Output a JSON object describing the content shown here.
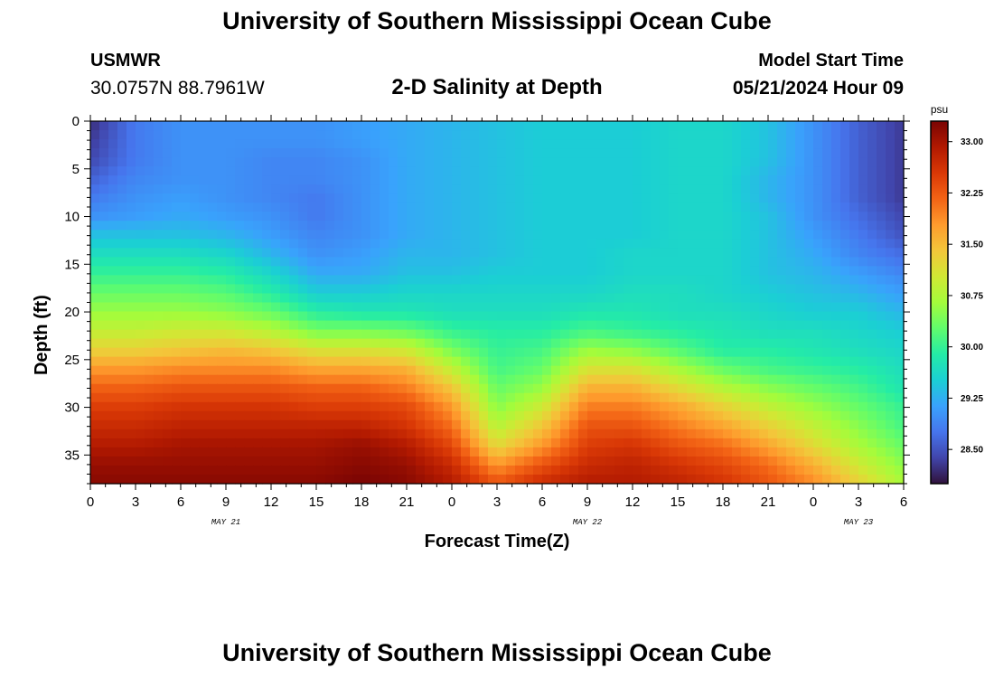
{
  "header": {
    "title": "University of Southern Mississippi Ocean Cube",
    "station": "USMWR",
    "coords": "30.0757N  88.7961W",
    "subtitle": "2-D Salinity at Depth",
    "model_start_label": "Model Start Time",
    "model_start_value": "05/21/2024 Hour 09"
  },
  "footer": {
    "title": "University of Southern Mississippi Ocean Cube"
  },
  "chart_data": {
    "type": "heatmap",
    "title": "2-D Salinity at Depth",
    "xlabel": "Forecast Time(Z)",
    "ylabel": "Depth (ft)",
    "x_tick_labels": [
      "0",
      "3",
      "6",
      "9",
      "12",
      "15",
      "18",
      "21",
      "0",
      "3",
      "6",
      "9",
      "12",
      "15",
      "18",
      "21",
      "0",
      "3",
      "6"
    ],
    "date_labels": [
      "MAY 21",
      "MAY 22",
      "MAY 23"
    ],
    "xlim_hours": [
      0,
      54
    ],
    "ylim": [
      0,
      38
    ],
    "y_ticks": [
      0,
      5,
      10,
      15,
      20,
      25,
      30,
      35
    ],
    "colorbar": {
      "unit": "psu",
      "range": [
        28.0,
        33.3
      ],
      "ticks": [
        "33.00",
        "32.25",
        "31.50",
        "30.75",
        "30.00",
        "29.25",
        "28.50"
      ],
      "colormap": [
        "#30123b",
        "#4145ab",
        "#4675ed",
        "#39a2fc",
        "#1bcfd4",
        "#24eca6",
        "#61fc6c",
        "#a4fc3b",
        "#d1e834",
        "#f3c63a",
        "#fe9b2d",
        "#f36315",
        "#d93806",
        "#b11901",
        "#7a0403"
      ]
    },
    "hours": [
      0,
      3,
      6,
      9,
      12,
      15,
      18,
      21,
      24,
      27,
      30,
      33,
      36,
      39,
      42,
      45,
      48,
      51,
      54
    ],
    "depths": [
      0,
      2,
      4,
      6,
      8,
      10,
      12,
      14,
      16,
      18,
      20,
      22,
      24,
      26,
      28,
      30,
      32,
      34,
      36,
      38
    ],
    "values": [
      [
        28.2,
        28.8,
        29.0,
        29.0,
        29.0,
        29.0,
        29.1,
        29.2,
        29.3,
        29.4,
        29.5,
        29.5,
        29.5,
        29.6,
        29.6,
        29.4,
        29.0,
        28.6,
        28.3
      ],
      [
        28.3,
        28.8,
        29.0,
        29.0,
        29.0,
        29.0,
        29.1,
        29.2,
        29.3,
        29.4,
        29.5,
        29.5,
        29.5,
        29.6,
        29.6,
        29.4,
        29.0,
        28.6,
        28.3
      ],
      [
        28.4,
        28.8,
        29.0,
        29.0,
        28.9,
        28.9,
        29.0,
        29.2,
        29.3,
        29.4,
        29.5,
        29.5,
        29.5,
        29.6,
        29.6,
        29.4,
        29.0,
        28.6,
        28.3
      ],
      [
        28.6,
        28.9,
        29.0,
        29.0,
        28.9,
        28.9,
        29.0,
        29.2,
        29.3,
        29.4,
        29.5,
        29.5,
        29.5,
        29.6,
        29.6,
        29.3,
        29.0,
        28.6,
        28.3
      ],
      [
        28.8,
        29.0,
        29.1,
        29.0,
        28.9,
        28.8,
        29.0,
        29.2,
        29.3,
        29.4,
        29.5,
        29.5,
        29.5,
        29.6,
        29.6,
        29.3,
        29.0,
        28.6,
        28.3
      ],
      [
        29.0,
        29.1,
        29.2,
        29.1,
        29.0,
        28.8,
        29.0,
        29.2,
        29.3,
        29.4,
        29.5,
        29.5,
        29.5,
        29.6,
        29.6,
        29.4,
        29.0,
        28.7,
        28.4
      ],
      [
        29.4,
        29.4,
        29.4,
        29.3,
        29.1,
        28.9,
        29.0,
        29.2,
        29.3,
        29.4,
        29.5,
        29.5,
        29.5,
        29.6,
        29.6,
        29.4,
        29.1,
        28.8,
        28.5
      ],
      [
        29.7,
        29.7,
        29.7,
        29.6,
        29.3,
        29.0,
        29.1,
        29.3,
        29.3,
        29.4,
        29.5,
        29.5,
        29.6,
        29.6,
        29.6,
        29.4,
        29.2,
        28.9,
        28.7
      ],
      [
        30.0,
        30.0,
        30.0,
        29.9,
        29.6,
        29.2,
        29.2,
        29.4,
        29.4,
        29.5,
        29.5,
        29.5,
        29.6,
        29.6,
        29.6,
        29.4,
        29.3,
        29.1,
        28.9
      ],
      [
        30.3,
        30.3,
        30.3,
        30.2,
        29.9,
        29.5,
        29.5,
        29.6,
        29.6,
        29.6,
        29.6,
        29.6,
        29.7,
        29.7,
        29.6,
        29.5,
        29.4,
        29.3,
        29.1
      ],
      [
        30.6,
        30.6,
        30.6,
        30.5,
        30.3,
        29.9,
        29.8,
        29.8,
        29.7,
        29.7,
        29.7,
        29.8,
        29.8,
        29.7,
        29.7,
        29.6,
        29.5,
        29.5,
        29.3
      ],
      [
        30.9,
        30.9,
        31.0,
        31.0,
        30.8,
        30.4,
        30.4,
        30.3,
        30.0,
        29.9,
        29.9,
        30.1,
        30.0,
        29.9,
        29.8,
        29.7,
        29.7,
        29.6,
        29.5
      ],
      [
        31.3,
        31.3,
        31.4,
        31.5,
        31.4,
        31.1,
        31.1,
        31.0,
        30.4,
        30.0,
        30.1,
        30.6,
        30.5,
        30.2,
        29.9,
        29.9,
        29.8,
        29.7,
        29.6
      ],
      [
        31.8,
        31.8,
        31.9,
        31.9,
        31.9,
        31.7,
        31.7,
        31.6,
        30.9,
        30.1,
        30.3,
        31.1,
        31.1,
        30.7,
        30.3,
        30.1,
        30.0,
        29.9,
        29.7
      ],
      [
        32.2,
        32.2,
        32.3,
        32.3,
        32.3,
        32.2,
        32.2,
        32.0,
        31.4,
        30.3,
        30.6,
        31.6,
        31.6,
        31.2,
        30.8,
        30.5,
        30.3,
        30.1,
        29.8
      ],
      [
        32.5,
        32.5,
        32.6,
        32.6,
        32.6,
        32.5,
        32.5,
        32.4,
        31.8,
        30.5,
        31.0,
        32.0,
        32.0,
        31.7,
        31.3,
        30.9,
        30.6,
        30.3,
        30.0
      ],
      [
        32.7,
        32.7,
        32.8,
        32.8,
        32.8,
        32.8,
        32.8,
        32.6,
        32.1,
        30.8,
        31.4,
        32.3,
        32.3,
        32.0,
        31.7,
        31.3,
        30.9,
        30.5,
        30.1
      ],
      [
        32.9,
        32.9,
        33.0,
        33.0,
        33.0,
        33.0,
        33.1,
        32.9,
        32.4,
        31.2,
        31.8,
        32.5,
        32.6,
        32.3,
        32.1,
        31.7,
        31.2,
        30.7,
        30.3
      ],
      [
        33.1,
        33.1,
        33.1,
        33.1,
        33.1,
        33.1,
        33.2,
        33.1,
        32.7,
        31.8,
        32.3,
        32.7,
        32.8,
        32.6,
        32.4,
        32.1,
        31.6,
        31.0,
        30.5
      ],
      [
        33.2,
        33.2,
        33.2,
        33.2,
        33.2,
        33.2,
        33.3,
        33.2,
        32.9,
        32.3,
        32.7,
        32.9,
        32.9,
        32.8,
        32.6,
        32.3,
        31.9,
        31.3,
        30.7
      ]
    ]
  }
}
